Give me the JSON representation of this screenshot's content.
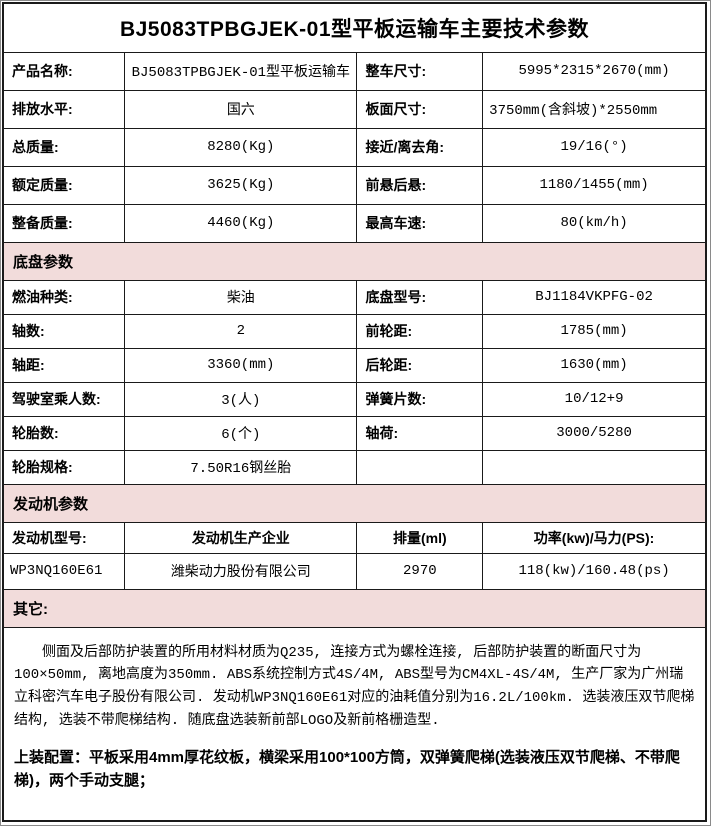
{
  "title": "BJ5083TPBGJEK-01型平板运输车主要技术参数",
  "colors": {
    "section_bg": "#f2dcdb",
    "border": "#1a1a1a",
    "page_edge": "#8a8a8a"
  },
  "spec_rows": [
    {
      "label1": "产品名称:",
      "value1": "BJ5083TPBGJEK-01型平板运输车",
      "label2": "整车尺寸:",
      "value2": "5995*2315*2670(mm)"
    },
    {
      "label1": "排放水平:",
      "value1": "国六",
      "label2": "板面尺寸:",
      "value2": "3750mm(含斜坡)*2550mm"
    },
    {
      "label1": "总质量:",
      "value1": "8280(Kg)",
      "label2": "接近/离去角:",
      "value2": "19/16(°)"
    },
    {
      "label1": "额定质量:",
      "value1": "3625(Kg)",
      "label2": "前悬后悬:",
      "value2": "1180/1455(mm)"
    },
    {
      "label1": "整备质量:",
      "value1": "4460(Kg)",
      "label2": "最高车速:",
      "value2": "80(km/h)"
    }
  ],
  "sections": {
    "chassis": "底盘参数",
    "engine": "发动机参数",
    "other": "其它:"
  },
  "chassis_rows": [
    {
      "label1": "燃油种类:",
      "value1": "柴油",
      "label2": "底盘型号:",
      "value2": "BJ1184VKPFG-02"
    },
    {
      "label1": "轴数:",
      "value1": "2",
      "label2": "前轮距:",
      "value2": "1785(mm)"
    },
    {
      "label1": "轴距:",
      "value1": "3360(mm)",
      "label2": "后轮距:",
      "value2": "1630(mm)"
    },
    {
      "label1": "驾驶室乘人数:",
      "value1": "3(人)",
      "label2": "弹簧片数:",
      "value2": "10/12+9"
    },
    {
      "label1": "轮胎数:",
      "value1": "6(个)",
      "label2": "轴荷:",
      "value2": "3000/5280"
    },
    {
      "label1": "轮胎规格:",
      "value1": "7.50R16钢丝胎",
      "label2": "",
      "value2": ""
    }
  ],
  "engine": {
    "headers": {
      "model": "发动机型号:",
      "manufacturer": "发动机生产企业",
      "displacement": "排量(ml)",
      "power": "功率(kw)/马力(PS):"
    },
    "row": {
      "model": "WP3NQ160E61",
      "manufacturer": "潍柴动力股份有限公司",
      "displacement": "2970",
      "power": "118(kw)/160.48(ps)"
    }
  },
  "other": {
    "paragraph": "侧面及后部防护装置的所用材料材质为Q235, 连接方式为螺栓连接, 后部防护装置的断面尺寸为100×50mm, 离地高度为350mm. ABS系统控制方式4S/4M, ABS型号为CM4XL-4S/4M, 生产厂家为广州瑞立科密汽车电子股份有限公司. 发动机WP3NQ160E61对应的油耗值分别为16.2L/100km. 选装液压双节爬梯结构, 选装不带爬梯结构. 随底盘选装新前部LOGO及新前格栅造型.",
    "upfit_text": "上装配置：平板采用4mm厚花纹板，横梁采用100*100方筒，双弹簧爬梯(选装液压双节爬梯、不带爬梯)，两个手动支腿；"
  }
}
